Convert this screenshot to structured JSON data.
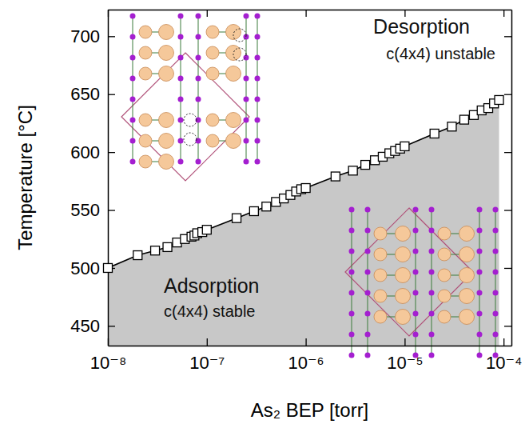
{
  "chart_data": {
    "type": "area",
    "x_label": "As₂ BEP [torr]",
    "y_label": "Temperature [°C]",
    "log": "x",
    "color": "#c8c8c8",
    "marker": "square",
    "line_style": "solid",
    "grid": false,
    "annotations": [
      "Desorption",
      "c(4x4) unstable",
      "Adsorption",
      "c(4x4) stable"
    ],
    "x": [
      1e-08,
      2e-08,
      3e-08,
      4e-08,
      5e-08,
      6e-08,
      7e-08,
      7.5e-08,
      8e-08,
      9e-08,
      1e-07,
      2e-07,
      3e-07,
      4e-07,
      5e-07,
      6e-07,
      7e-07,
      8e-07,
      9e-07,
      1e-06,
      2e-06,
      3e-06,
      4e-06,
      5e-06,
      6e-06,
      7e-06,
      8e-06,
      9e-06,
      1e-05,
      2e-05,
      3e-05,
      4e-05,
      5e-05,
      6e-05,
      7e-05,
      8e-05,
      9e-05
    ],
    "values": [
      500,
      511,
      515,
      518,
      522,
      525,
      527,
      528,
      530,
      531,
      533,
      543,
      549,
      553,
      557,
      560,
      563,
      566,
      568,
      569,
      579,
      584,
      589,
      593,
      596,
      599,
      601,
      603,
      605,
      616,
      622,
      628,
      632,
      636,
      638,
      642,
      645
    ],
    "xlim": [
      1e-08,
      0.00012
    ],
    "ylim": [
      433,
      723
    ],
    "xticks": [
      {
        "value": 1e-08,
        "label": "10⁻⁸"
      },
      {
        "value": 1e-07,
        "label": "10⁻⁷"
      },
      {
        "value": 1e-06,
        "label": "10⁻⁶"
      },
      {
        "value": 1e-05,
        "label": "10⁻⁵"
      },
      {
        "value": 0.0001,
        "label": "10⁻⁴"
      }
    ],
    "yticks": [
      450,
      500,
      550,
      600,
      650,
      700
    ]
  }
}
